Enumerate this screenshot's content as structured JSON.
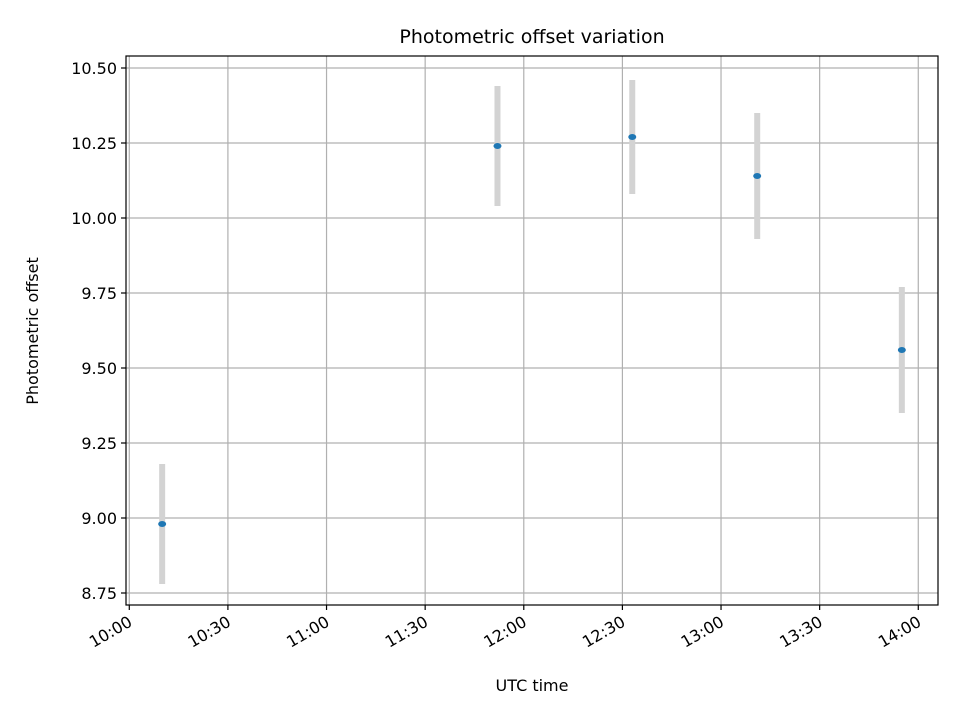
{
  "chart_data": {
    "type": "scatter",
    "title": "Photometric offset variation",
    "xlabel": "UTC time",
    "ylabel": "Photometric offset",
    "x_ticks": [
      "10:00",
      "10:30",
      "11:00",
      "11:30",
      "12:00",
      "12:30",
      "13:00",
      "13:30",
      "14:00"
    ],
    "y_ticks": [
      "8.75",
      "9.00",
      "9.25",
      "9.50",
      "9.75",
      "10.00",
      "10.25",
      "10.50"
    ],
    "xlim": [
      "09:59",
      "14:06"
    ],
    "ylim": [
      8.71,
      10.54
    ],
    "grid": true,
    "points": [
      {
        "x": "10:10",
        "y": 8.98,
        "err": 0.2
      },
      {
        "x": "11:52",
        "y": 10.24,
        "err": 0.2
      },
      {
        "x": "12:33",
        "y": 10.27,
        "err": 0.19
      },
      {
        "x": "13:11",
        "y": 10.14,
        "err": 0.21
      },
      {
        "x": "13:55",
        "y": 9.56,
        "err": 0.21
      }
    ],
    "colors": {
      "point": "#1f77b4",
      "errorbar": "#d3d3d3",
      "grid": "#b0b0b0"
    }
  }
}
